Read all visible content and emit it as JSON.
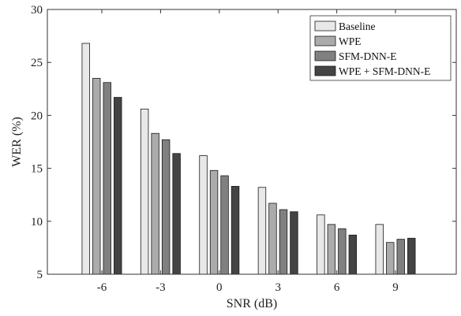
{
  "chart_data": {
    "type": "bar",
    "title": "",
    "xlabel": "SNR (dB)",
    "ylabel": "WER (%)",
    "ylim": [
      5,
      30
    ],
    "yticks": [
      5,
      10,
      15,
      20,
      25,
      30
    ],
    "grid": false,
    "legend_position": "top-right",
    "categories": [
      "-6",
      "-3",
      "0",
      "3",
      "6",
      "9"
    ],
    "series": [
      {
        "name": "Baseline",
        "color": "#e8e8e8",
        "values": [
          26.8,
          20.6,
          16.2,
          13.2,
          10.6,
          9.7
        ]
      },
      {
        "name": "WPE",
        "color": "#ababab",
        "values": [
          23.5,
          18.3,
          14.8,
          11.7,
          9.7,
          8.0
        ]
      },
      {
        "name": "SFM-DNN-E",
        "color": "#808080",
        "values": [
          23.1,
          17.7,
          14.3,
          11.1,
          9.3,
          8.3
        ]
      },
      {
        "name": "WPE + SFM-DNN-E",
        "color": "#444444",
        "values": [
          21.7,
          16.4,
          13.3,
          10.9,
          8.7,
          8.4
        ]
      }
    ]
  }
}
